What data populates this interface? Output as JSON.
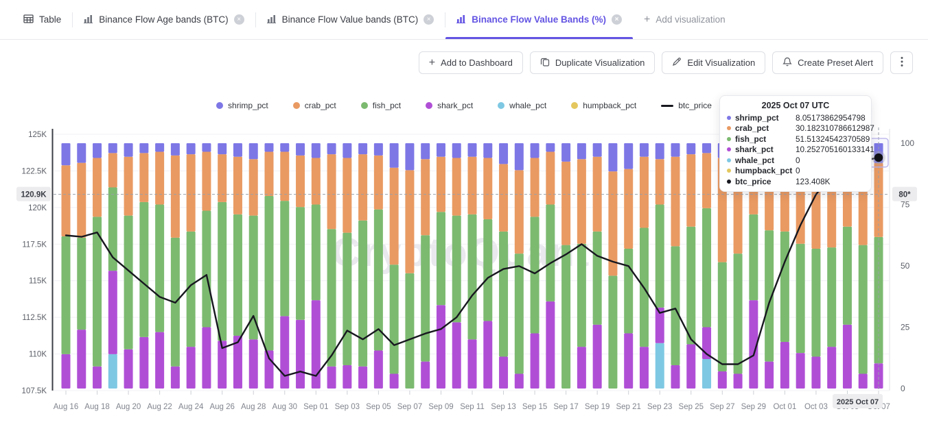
{
  "tab_bar": {
    "tabs": [
      {
        "label": "Table",
        "icon": "table-grid-icon",
        "closable": false,
        "active": false
      },
      {
        "label": "Binance Flow Age bands (BTC)",
        "icon": "bar-chart-icon",
        "closable": true,
        "active": false
      },
      {
        "label": "Binance Flow Value bands (BTC)",
        "icon": "bar-chart-icon",
        "closable": true,
        "active": false
      },
      {
        "label": "Binance Flow Value Bands (%)",
        "icon": "bar-chart-icon",
        "closable": true,
        "active": true
      }
    ],
    "add_label": "Add visualization"
  },
  "toolbar": {
    "buttons": [
      {
        "label": "Add to Dashboard",
        "icon": "plus-icon"
      },
      {
        "label": "Duplicate Visualization",
        "icon": "copy-icon"
      },
      {
        "label": "Edit Visualization",
        "icon": "pencil-icon"
      },
      {
        "label": "Create Preset Alert",
        "icon": "bell-icon"
      }
    ]
  },
  "legend": [
    {
      "label": "shrimp_pct",
      "color": "#7d77e6",
      "type": "dot"
    },
    {
      "label": "crab_pct",
      "color": "#e99a62",
      "type": "dot"
    },
    {
      "label": "fish_pct",
      "color": "#7cba70",
      "type": "dot"
    },
    {
      "label": "shark_pct",
      "color": "#b04fd6",
      "type": "dot"
    },
    {
      "label": "whale_pct",
      "color": "#7ec8e3",
      "type": "dot"
    },
    {
      "label": "humpback_pct",
      "color": "#e4c75e",
      "type": "dot"
    },
    {
      "label": "btc_price",
      "color": "#17171f",
      "type": "line"
    }
  ],
  "tooltip": {
    "title": "2025 Oct 07 UTC",
    "rows": [
      {
        "label": "shrimp_pct",
        "value": "8.05173862954798",
        "color": "#7d77e6"
      },
      {
        "label": "crab_pct",
        "value": "30.182310786612987",
        "color": "#e99a62"
      },
      {
        "label": "fish_pct",
        "value": "51.51324542370589",
        "color": "#7cba70"
      },
      {
        "label": "shark_pct",
        "value": "10.252705160133141",
        "color": "#b04fd6"
      },
      {
        "label": "whale_pct",
        "value": "0",
        "color": "#7ec8e3"
      },
      {
        "label": "humpback_pct",
        "value": "0",
        "color": "#e4c75e"
      },
      {
        "label": "btc_price",
        "value": "123.408K",
        "color": "#17171f"
      }
    ]
  },
  "crosshair": {
    "date_label": "2025 Oct 07",
    "price_label": "120.9K",
    "price_k": 120.9,
    "pct_label": "80*",
    "bar_index": 52
  },
  "watermark": "CryptoQuant",
  "chart_data": {
    "type": "stacked-bar+line",
    "title": "Binance Flow Value Bands (%)",
    "left_axis": {
      "unit": "K",
      "min": 107.5,
      "max": 125,
      "ticks": [
        "125K",
        "122.5K",
        "120K",
        "117.5K",
        "115K",
        "112.5K",
        "110K",
        "107.5K"
      ],
      "tick_values": [
        125,
        122.5,
        120,
        117.5,
        115,
        112.5,
        110,
        107.5
      ]
    },
    "right_axis": {
      "min": 0,
      "max": 100,
      "ticks": [
        "100",
        "75",
        "50",
        "25",
        "0"
      ],
      "tick_values": [
        100,
        75,
        50,
        25,
        0
      ]
    },
    "categories": [
      "Aug 16",
      "Aug 17",
      "Aug 18",
      "Aug 19",
      "Aug 20",
      "Aug 21",
      "Aug 22",
      "Aug 23",
      "Aug 24",
      "Aug 25",
      "Aug 26",
      "Aug 27",
      "Aug 28",
      "Aug 29",
      "Aug 30",
      "Aug 31",
      "Sep 01",
      "Sep 02",
      "Sep 03",
      "Sep 04",
      "Sep 05",
      "Sep 06",
      "Sep 07",
      "Sep 08",
      "Sep 09",
      "Sep 10",
      "Sep 11",
      "Sep 12",
      "Sep 13",
      "Sep 14",
      "Sep 15",
      "Sep 16",
      "Sep 17",
      "Sep 18",
      "Sep 19",
      "Sep 20",
      "Sep 21",
      "Sep 22",
      "Sep 23",
      "Sep 24",
      "Sep 25",
      "Sep 26",
      "Sep 27",
      "Sep 28",
      "Sep 29",
      "Sep 30",
      "Oct 01",
      "Oct 02",
      "Oct 03",
      "Oct 04",
      "Oct 05",
      "Oct 06",
      "Oct 07"
    ],
    "x_label_step": 2,
    "stack_order_bottom_to_top": [
      "humpback_pct",
      "whale_pct",
      "shark_pct",
      "fish_pct",
      "crab_pct",
      "shrimp_pct"
    ],
    "series": [
      {
        "name": "shrimp_pct",
        "color": "#7d77e6",
        "values": [
          9,
          8,
          6,
          4,
          5.5,
          4,
          3.5,
          5,
          4.5,
          3.5,
          4.5,
          5.5,
          6.5,
          3.5,
          3.5,
          5,
          6,
          4.5,
          6,
          4.5,
          5,
          10,
          11,
          6.5,
          5.5,
          6,
          5.5,
          6,
          8.5,
          11,
          6,
          3.5,
          7.5,
          6.5,
          5.5,
          11.5,
          10.5,
          5.5,
          6.5,
          5.5,
          4.5,
          4,
          6,
          6,
          5,
          5,
          5,
          5.5,
          6,
          5.5,
          5,
          6,
          8.05
        ]
      },
      {
        "name": "crab_pct",
        "color": "#e99a62",
        "values": [
          29,
          30.5,
          24,
          14,
          24,
          20,
          21.5,
          33.5,
          31.5,
          24,
          19.5,
          23.5,
          23,
          18,
          20,
          21,
          19,
          30.5,
          30.5,
          27,
          22,
          39.5,
          42,
          31,
          22.5,
          23.5,
          23.5,
          25,
          27.5,
          34,
          24,
          21.5,
          34,
          34.5,
          30.5,
          42.5,
          32.5,
          29,
          18.5,
          36.5,
          29.5,
          22.5,
          42.5,
          39,
          24,
          30.5,
          31,
          35.5,
          37,
          37,
          29,
          35.5,
          30.18
        ]
      },
      {
        "name": "fish_pct",
        "color": "#7cba70",
        "values": [
          48,
          37.5,
          61,
          34,
          54.5,
          55,
          52,
          52.5,
          47,
          47.5,
          56.5,
          49.5,
          50.5,
          63,
          47,
          46,
          39,
          56,
          54,
          59.5,
          57.5,
          44.5,
          47,
          51.5,
          38,
          43.5,
          51,
          41.5,
          51,
          49,
          47.5,
          39.5,
          58.5,
          42,
          38,
          46,
          34.5,
          48.5,
          42,
          48.5,
          48,
          48.5,
          44.5,
          49,
          35,
          53.5,
          45,
          44.5,
          44,
          40.5,
          40,
          52.5,
          51.51
        ]
      },
      {
        "name": "shark_pct",
        "color": "#b04fd6",
        "values": [
          14,
          24,
          9,
          34,
          16,
          21,
          23,
          9,
          17,
          25,
          19.5,
          21.5,
          20,
          15.5,
          29.5,
          28,
          36,
          9,
          9.5,
          9,
          15.5,
          6,
          0,
          11,
          34,
          27,
          20,
          27.5,
          13,
          6,
          22.5,
          35.5,
          0,
          17,
          26,
          0,
          22.5,
          17,
          14.5,
          9.5,
          18,
          13,
          7,
          6,
          36,
          11,
          19,
          14.5,
          13,
          17,
          26,
          6,
          10.25
        ]
      },
      {
        "name": "whale_pct",
        "color": "#7ec8e3",
        "values": [
          0,
          0,
          0,
          14,
          0,
          0,
          0,
          0,
          0,
          0,
          0,
          0,
          0,
          0,
          0,
          0,
          0,
          0,
          0,
          0,
          0,
          0,
          0,
          0,
          0,
          0,
          0,
          0,
          0,
          0,
          0,
          0,
          0,
          0,
          0,
          0,
          0,
          0,
          18.5,
          0,
          0,
          12,
          0,
          0,
          0,
          0,
          0,
          0,
          0,
          0,
          0,
          0,
          0
        ]
      },
      {
        "name": "humpback_pct",
        "color": "#e4c75e",
        "values": [
          0,
          0,
          0,
          0,
          0,
          0,
          0,
          0,
          0,
          0,
          0,
          0,
          0,
          0,
          0,
          0,
          0,
          0,
          0,
          0,
          0,
          0,
          0,
          0,
          0,
          0,
          0,
          0,
          0,
          0,
          0,
          0,
          0,
          0,
          0,
          0,
          0,
          0,
          0,
          0,
          0,
          0,
          0,
          0,
          0,
          0,
          0,
          0,
          0,
          0,
          0,
          0,
          0
        ]
      }
    ],
    "line_series": {
      "name": "btc_price",
      "color": "#17171f",
      "unit": "K",
      "values_k": [
        118.1,
        118.0,
        118.3,
        116.6,
        115.7,
        114.8,
        113.9,
        113.5,
        114.7,
        115.4,
        110.4,
        110.8,
        112.6,
        109.7,
        108.5,
        108.8,
        108.5,
        109.9,
        111.6,
        111.0,
        111.7,
        110.6,
        111.0,
        111.4,
        111.7,
        112.5,
        114.0,
        115.2,
        115.8,
        116.0,
        115.5,
        116.2,
        116.8,
        117.5,
        116.7,
        116.3,
        116.0,
        114.5,
        112.8,
        113.1,
        111.0,
        110.0,
        109.3,
        109.3,
        109.9,
        113.5,
        116.3,
        118.8,
        120.9,
        122.2,
        122.9,
        123.2,
        123.408
      ]
    },
    "last_point_label": "123.408K",
    "legend_position": "top-center",
    "grid": true
  }
}
